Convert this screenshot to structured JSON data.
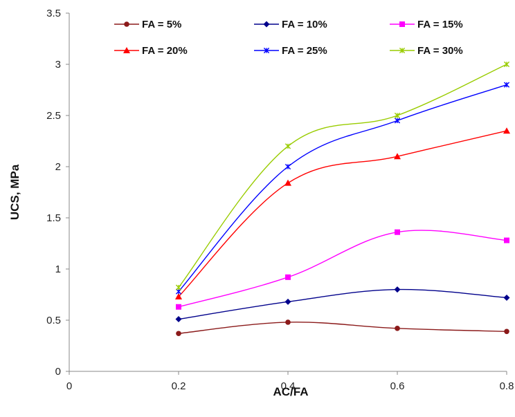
{
  "chart_data": {
    "type": "line",
    "xlabel": "AC/FA",
    "ylabel": "UCS, MPa",
    "xlim": [
      0,
      0.8
    ],
    "ylim": [
      0,
      3.5
    ],
    "xticks": [
      "0",
      "0.2",
      "0.4",
      "0.6",
      "0.8"
    ],
    "yticks": [
      "0",
      "0.5",
      "1",
      "1.5",
      "2",
      "2.5",
      "3",
      "3.5"
    ],
    "grid": false,
    "legend": "top",
    "x": [
      0.2,
      0.4,
      0.6,
      0.8
    ],
    "series": [
      {
        "name": "FA = 5%",
        "values": [
          0.37,
          0.48,
          0.42,
          0.39
        ],
        "color": "#8b1a1a",
        "marker": "circle"
      },
      {
        "name": "FA = 10%",
        "values": [
          0.51,
          0.68,
          0.8,
          0.72
        ],
        "color": "#00008b",
        "marker": "diamond"
      },
      {
        "name": "FA = 15%",
        "values": [
          0.63,
          0.92,
          1.36,
          1.28
        ],
        "color": "#ff00ff",
        "marker": "square"
      },
      {
        "name": "FA = 20%",
        "values": [
          0.73,
          1.84,
          2.1,
          2.35
        ],
        "color": "#ff0000",
        "marker": "triangle"
      },
      {
        "name": "FA = 25%",
        "values": [
          0.78,
          2.0,
          2.45,
          2.8
        ],
        "color": "#0000ff",
        "marker": "star"
      },
      {
        "name": "FA = 30%",
        "values": [
          0.82,
          2.2,
          2.5,
          3.0
        ],
        "color": "#99cc00",
        "marker": "star"
      }
    ]
  }
}
